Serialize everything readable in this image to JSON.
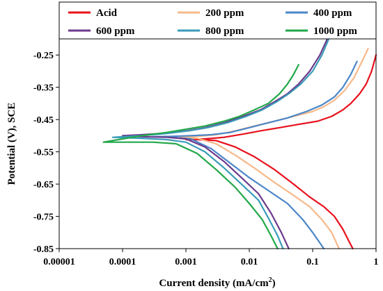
{
  "chart_data": {
    "type": "line",
    "xlabel": "Current density (mA/cm",
    "xlabel_sup": "2",
    "xlabel_end": ")",
    "ylabel": "Potential (V), SCE",
    "x_scale": "log",
    "xlim": [
      1e-05,
      1
    ],
    "ylim": [
      -0.85,
      -0.2
    ],
    "x_ticks": [
      1e-05,
      0.0001,
      0.001,
      0.01,
      0.1,
      1
    ],
    "x_tick_labels": [
      "0.00001",
      "0.0001",
      "0.001",
      "0.01",
      "0.1",
      "1"
    ],
    "y_ticks": [
      -0.25,
      -0.35,
      -0.45,
      -0.55,
      -0.65,
      -0.75,
      -0.85
    ],
    "y_tick_labels": [
      "-0.25",
      "-0.35",
      "-0.45",
      "-0.55",
      "-0.65",
      "-0.75",
      "-0.85"
    ],
    "grid": false,
    "legend_position": "top",
    "series": [
      {
        "name": "Acid",
        "color": "#e8101c",
        "points": [
          [
            1.0,
            -0.25
          ],
          [
            0.85,
            -0.3
          ],
          [
            0.7,
            -0.34
          ],
          [
            0.55,
            -0.37
          ],
          [
            0.4,
            -0.4
          ],
          [
            0.3,
            -0.42
          ],
          [
            0.2,
            -0.44
          ],
          [
            0.12,
            -0.455
          ],
          [
            0.06,
            -0.465
          ],
          [
            0.03,
            -0.475
          ],
          [
            0.015,
            -0.485
          ],
          [
            0.008,
            -0.495
          ],
          [
            0.004,
            -0.505
          ],
          [
            0.002,
            -0.51
          ],
          [
            0.001,
            -0.512
          ],
          [
            0.0015,
            -0.512
          ],
          [
            0.003,
            -0.515
          ],
          [
            0.006,
            -0.535
          ],
          [
            0.012,
            -0.565
          ],
          [
            0.025,
            -0.605
          ],
          [
            0.05,
            -0.65
          ],
          [
            0.09,
            -0.69
          ],
          [
            0.15,
            -0.72
          ],
          [
            0.22,
            -0.75
          ],
          [
            0.3,
            -0.79
          ],
          [
            0.38,
            -0.83
          ],
          [
            0.43,
            -0.85
          ]
        ]
      },
      {
        "name": "200 ppm",
        "color": "#f6b98a",
        "points": [
          [
            0.75,
            -0.23
          ],
          [
            0.6,
            -0.27
          ],
          [
            0.45,
            -0.32
          ],
          [
            0.32,
            -0.36
          ],
          [
            0.22,
            -0.39
          ],
          [
            0.15,
            -0.41
          ],
          [
            0.1,
            -0.425
          ],
          [
            0.05,
            -0.44
          ],
          [
            0.025,
            -0.455
          ],
          [
            0.012,
            -0.47
          ],
          [
            0.006,
            -0.485
          ],
          [
            0.003,
            -0.497
          ],
          [
            0.0015,
            -0.502
          ],
          [
            0.0008,
            -0.505
          ],
          [
            0.0015,
            -0.508
          ],
          [
            0.003,
            -0.525
          ],
          [
            0.006,
            -0.56
          ],
          [
            0.012,
            -0.6
          ],
          [
            0.025,
            -0.645
          ],
          [
            0.05,
            -0.685
          ],
          [
            0.09,
            -0.72
          ],
          [
            0.14,
            -0.76
          ],
          [
            0.2,
            -0.8
          ],
          [
            0.26,
            -0.85
          ]
        ]
      },
      {
        "name": "400 ppm",
        "color": "#4a86c8",
        "points": [
          [
            0.5,
            -0.27
          ],
          [
            0.4,
            -0.31
          ],
          [
            0.3,
            -0.35
          ],
          [
            0.22,
            -0.38
          ],
          [
            0.14,
            -0.405
          ],
          [
            0.08,
            -0.425
          ],
          [
            0.04,
            -0.445
          ],
          [
            0.02,
            -0.46
          ],
          [
            0.01,
            -0.475
          ],
          [
            0.005,
            -0.49
          ],
          [
            0.0025,
            -0.497
          ],
          [
            0.0012,
            -0.5
          ],
          [
            0.0006,
            -0.502
          ],
          [
            0.0003,
            -0.503
          ],
          [
            0.0006,
            -0.505
          ],
          [
            0.0012,
            -0.51
          ],
          [
            0.0025,
            -0.54
          ],
          [
            0.005,
            -0.585
          ],
          [
            0.01,
            -0.63
          ],
          [
            0.02,
            -0.67
          ],
          [
            0.04,
            -0.71
          ],
          [
            0.07,
            -0.76
          ],
          [
            0.1,
            -0.8
          ],
          [
            0.15,
            -0.85
          ]
        ]
      },
      {
        "name": "600 ppm",
        "color": "#6b3a8c",
        "points": [
          [
            0.17,
            -0.2
          ],
          [
            0.13,
            -0.25
          ],
          [
            0.09,
            -0.3
          ],
          [
            0.06,
            -0.34
          ],
          [
            0.04,
            -0.37
          ],
          [
            0.025,
            -0.395
          ],
          [
            0.015,
            -0.42
          ],
          [
            0.008,
            -0.44
          ],
          [
            0.004,
            -0.46
          ],
          [
            0.002,
            -0.475
          ],
          [
            0.001,
            -0.485
          ],
          [
            0.0005,
            -0.492
          ],
          [
            0.0002,
            -0.497
          ],
          [
            0.0001,
            -0.5
          ],
          [
            0.0002,
            -0.503
          ],
          [
            0.0005,
            -0.505
          ],
          [
            0.001,
            -0.51
          ],
          [
            0.002,
            -0.535
          ],
          [
            0.004,
            -0.58
          ],
          [
            0.008,
            -0.635
          ],
          [
            0.014,
            -0.68
          ],
          [
            0.022,
            -0.74
          ],
          [
            0.032,
            -0.8
          ],
          [
            0.042,
            -0.85
          ]
        ]
      },
      {
        "name": "800 ppm",
        "color": "#3a9bb8",
        "points": [
          [
            0.18,
            -0.2
          ],
          [
            0.14,
            -0.25
          ],
          [
            0.1,
            -0.3
          ],
          [
            0.065,
            -0.34
          ],
          [
            0.042,
            -0.37
          ],
          [
            0.027,
            -0.395
          ],
          [
            0.016,
            -0.42
          ],
          [
            0.009,
            -0.44
          ],
          [
            0.0045,
            -0.46
          ],
          [
            0.0022,
            -0.475
          ],
          [
            0.0011,
            -0.485
          ],
          [
            0.0005,
            -0.493
          ],
          [
            0.0002,
            -0.5
          ],
          [
            7e-05,
            -0.505
          ],
          [
            0.0002,
            -0.508
          ],
          [
            0.0005,
            -0.512
          ],
          [
            0.001,
            -0.52
          ],
          [
            0.002,
            -0.55
          ],
          [
            0.004,
            -0.6
          ],
          [
            0.008,
            -0.655
          ],
          [
            0.014,
            -0.7
          ],
          [
            0.02,
            -0.755
          ],
          [
            0.028,
            -0.81
          ],
          [
            0.034,
            -0.85
          ]
        ]
      },
      {
        "name": "1000 ppm",
        "color": "#21a84a",
        "points": [
          [
            0.06,
            -0.28
          ],
          [
            0.05,
            -0.31
          ],
          [
            0.04,
            -0.34
          ],
          [
            0.03,
            -0.37
          ],
          [
            0.02,
            -0.4
          ],
          [
            0.012,
            -0.42
          ],
          [
            0.007,
            -0.44
          ],
          [
            0.004,
            -0.455
          ],
          [
            0.002,
            -0.47
          ],
          [
            0.001,
            -0.48
          ],
          [
            0.0005,
            -0.49
          ],
          [
            0.0002,
            -0.5
          ],
          [
            0.0001,
            -0.51
          ],
          [
            5e-05,
            -0.52
          ],
          [
            0.0001,
            -0.52
          ],
          [
            0.0003,
            -0.52
          ],
          [
            0.0007,
            -0.525
          ],
          [
            0.0015,
            -0.555
          ],
          [
            0.003,
            -0.605
          ],
          [
            0.006,
            -0.66
          ],
          [
            0.01,
            -0.71
          ],
          [
            0.016,
            -0.76
          ],
          [
            0.022,
            -0.81
          ],
          [
            0.028,
            -0.85
          ]
        ]
      }
    ]
  }
}
